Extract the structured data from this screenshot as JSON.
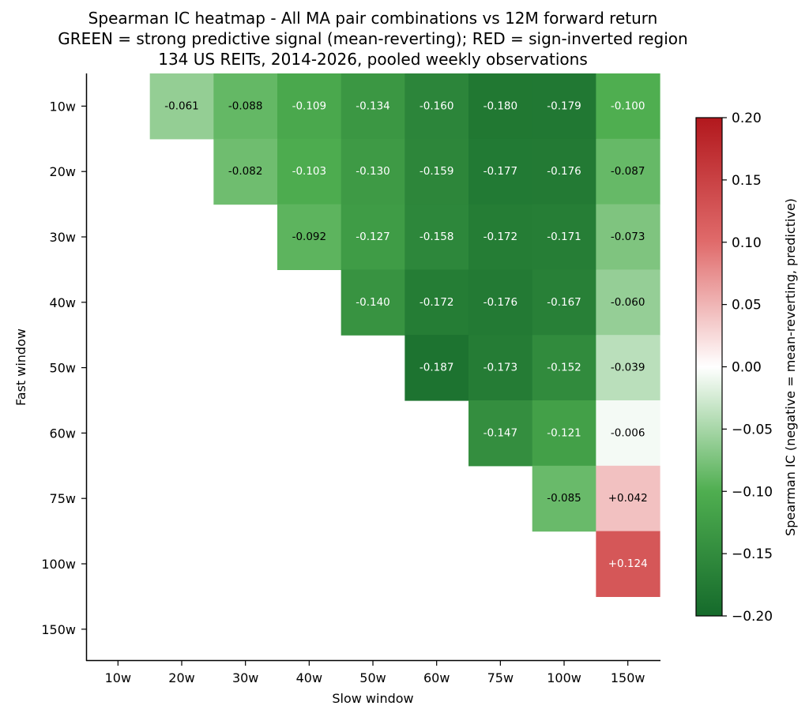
{
  "chart_data": {
    "type": "heatmap",
    "title": [
      "Spearman IC heatmap - All MA pair combinations vs 12M forward return",
      "GREEN = strong predictive signal (mean-reverting); RED = sign-inverted region",
      "134 US REITs, 2014-2026, pooled weekly observations"
    ],
    "xlabel": "Slow window",
    "ylabel": "Fast window",
    "x_categories": [
      "10w",
      "20w",
      "30w",
      "40w",
      "50w",
      "60w",
      "75w",
      "100w",
      "150w"
    ],
    "y_categories": [
      "10w",
      "20w",
      "30w",
      "40w",
      "50w",
      "60w",
      "75w",
      "100w",
      "150w"
    ],
    "values": [
      [
        null,
        -0.061,
        -0.088,
        -0.109,
        -0.134,
        -0.16,
        -0.18,
        -0.179,
        -0.1
      ],
      [
        null,
        null,
        -0.082,
        -0.103,
        -0.13,
        -0.159,
        -0.177,
        -0.176,
        -0.087
      ],
      [
        null,
        null,
        null,
        -0.092,
        -0.127,
        -0.158,
        -0.172,
        -0.171,
        -0.073
      ],
      [
        null,
        null,
        null,
        null,
        -0.14,
        -0.172,
        -0.176,
        -0.167,
        -0.06
      ],
      [
        null,
        null,
        null,
        null,
        null,
        -0.187,
        -0.173,
        -0.152,
        -0.039
      ],
      [
        null,
        null,
        null,
        null,
        null,
        null,
        -0.147,
        -0.121,
        -0.006
      ],
      [
        null,
        null,
        null,
        null,
        null,
        null,
        null,
        -0.085,
        0.042
      ],
      [
        null,
        null,
        null,
        null,
        null,
        null,
        null,
        null,
        0.124
      ],
      [
        null,
        null,
        null,
        null,
        null,
        null,
        null,
        null,
        null
      ]
    ],
    "cell_labels": [
      [
        null,
        "-0.061",
        "-0.088",
        "-0.109",
        "-0.134",
        "-0.160",
        "-0.180",
        "-0.179",
        "-0.100"
      ],
      [
        null,
        null,
        "-0.082",
        "-0.103",
        "-0.130",
        "-0.159",
        "-0.177",
        "-0.176",
        "-0.087"
      ],
      [
        null,
        null,
        null,
        "-0.092",
        "-0.127",
        "-0.158",
        "-0.172",
        "-0.171",
        "-0.073"
      ],
      [
        null,
        null,
        null,
        null,
        "-0.140",
        "-0.172",
        "-0.176",
        "-0.167",
        "-0.060"
      ],
      [
        null,
        null,
        null,
        null,
        null,
        "-0.187",
        "-0.173",
        "-0.152",
        "-0.039"
      ],
      [
        null,
        null,
        null,
        null,
        null,
        null,
        "-0.147",
        "-0.121",
        "-0.006"
      ],
      [
        null,
        null,
        null,
        null,
        null,
        null,
        null,
        "-0.085",
        "+0.042"
      ],
      [
        null,
        null,
        null,
        null,
        null,
        null,
        null,
        null,
        "+0.124"
      ],
      [
        null,
        null,
        null,
        null,
        null,
        null,
        null,
        null,
        null
      ]
    ],
    "colorbar": {
      "label": "Spearman IC (negative = mean-reverting, predictive)",
      "range": [
        -0.2,
        0.2
      ],
      "ticks": [
        0.2,
        0.15,
        0.1,
        0.05,
        0.0,
        -0.05,
        -0.1,
        -0.15,
        -0.2
      ],
      "tick_labels": [
        "0.20",
        "0.15",
        "0.10",
        "0.05",
        "0.00",
        "−0.05",
        "−0.10",
        "−0.15",
        "−0.20"
      ],
      "colors": {
        "negative_end": "#156a2b",
        "mid_green": "#4fae50",
        "center": "#ffffff",
        "mid_red": "#e06b6b",
        "positive_end": "#b2181d"
      }
    },
    "grid": false,
    "legend": "colorbar-right"
  }
}
